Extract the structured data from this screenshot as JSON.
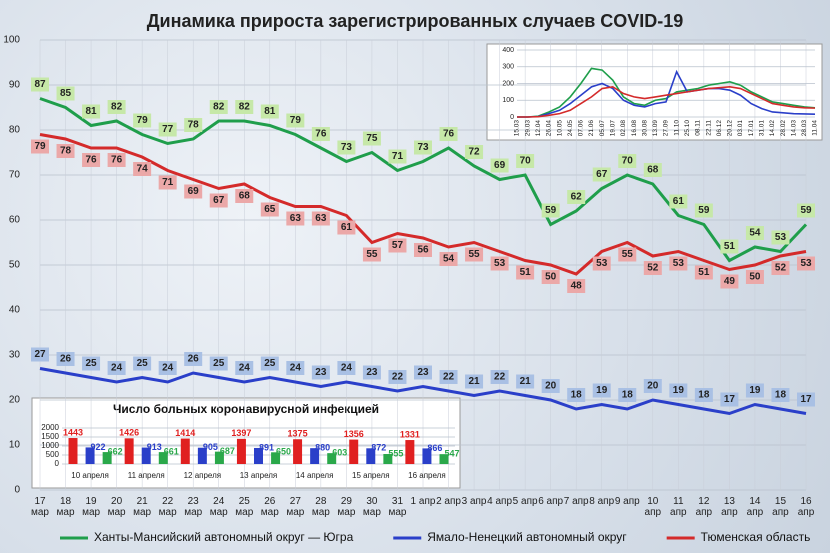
{
  "chart_data": [
    {
      "type": "line",
      "title": "Динамика прироста зарегистрированных случаев COVID-19",
      "categories": [
        "17 мар",
        "18 мар",
        "19 мар",
        "20 мар",
        "21 мар",
        "22 мар",
        "23 мар",
        "24 мар",
        "25 мар",
        "26 мар",
        "27 мар",
        "28 мар",
        "29 мар",
        "30 мар",
        "31 мар",
        "1 апр",
        "2 апр",
        "3 апр",
        "4 апр",
        "5 апр",
        "6 апр",
        "7 апр",
        "8 апр",
        "9 апр",
        "10 апр",
        "11 апр",
        "12 апр",
        "13 апр",
        "14 апр",
        "15 апр",
        "16 апр"
      ],
      "series": [
        {
          "name": "Ханты-Мансийский автономный округ — Югра",
          "color": "#1f9e4b",
          "label_bg": "#c6e8a8",
          "values": [
            87,
            85,
            81,
            82,
            79,
            77,
            78,
            82,
            82,
            81,
            79,
            76,
            73,
            75,
            71,
            73,
            76,
            72,
            69,
            70,
            59,
            62,
            67,
            70,
            68,
            61,
            59,
            51,
            54,
            53,
            59
          ]
        },
        {
          "name": "Ямало-Ненецкий автономный округ",
          "color": "#2a3fc9",
          "label_bg": "#a9c0e4",
          "values": [
            27,
            26,
            25,
            24,
            25,
            24,
            26,
            25,
            24,
            25,
            24,
            23,
            24,
            23,
            22,
            23,
            22,
            21,
            22,
            21,
            20,
            18,
            19,
            18,
            20,
            19,
            18,
            17,
            19,
            18,
            17
          ]
        },
        {
          "name": "Тюменская область",
          "color": "#d42a2a",
          "label_bg": "#eba8a8",
          "values": [
            79,
            78,
            76,
            76,
            74,
            71,
            69,
            67,
            68,
            65,
            63,
            63,
            61,
            55,
            57,
            56,
            54,
            55,
            53,
            51,
            50,
            48,
            53,
            55,
            52,
            53,
            51,
            49,
            50,
            52,
            53
          ]
        }
      ],
      "ylim": [
        0,
        100
      ],
      "yticks": [
        0,
        10,
        20,
        30,
        40,
        50,
        60,
        70,
        80,
        90,
        100
      ],
      "grid": true,
      "legend": "bottom",
      "data_labels": true
    },
    {
      "type": "line",
      "categories": [
        "15.03",
        "29.03",
        "12.04",
        "26.04",
        "10.05",
        "24.05",
        "07.06",
        "21.06",
        "05.07",
        "19.07",
        "02.08",
        "16.08",
        "30.08",
        "13.09",
        "27.09",
        "11.10",
        "25.10",
        "08.11",
        "22.11",
        "06.12",
        "20.12",
        "03.01",
        "17.01",
        "31.01",
        "14.02",
        "28.02",
        "14.03",
        "28.03",
        "11.04"
      ],
      "series": [
        {
          "color": "#1f9e4b",
          "values": [
            0,
            0,
            5,
            30,
            60,
            120,
            200,
            290,
            280,
            220,
            120,
            80,
            70,
            100,
            110,
            150,
            160,
            170,
            190,
            200,
            210,
            190,
            150,
            120,
            90,
            80,
            70,
            60,
            55
          ]
        },
        {
          "color": "#2a3fc9",
          "values": [
            0,
            0,
            3,
            20,
            40,
            80,
            130,
            180,
            200,
            170,
            100,
            70,
            60,
            80,
            90,
            270,
            150,
            160,
            170,
            170,
            160,
            130,
            80,
            50,
            30,
            25,
            20,
            18,
            17
          ]
        },
        {
          "color": "#d42a2a",
          "values": [
            0,
            0,
            2,
            10,
            20,
            40,
            80,
            120,
            170,
            180,
            140,
            120,
            110,
            120,
            130,
            140,
            150,
            160,
            170,
            175,
            180,
            170,
            140,
            110,
            80,
            70,
            60,
            55,
            53
          ]
        }
      ],
      "ylim": [
        0,
        400
      ],
      "yticks": [
        0,
        100,
        200,
        300,
        400
      ],
      "grid": true
    },
    {
      "type": "bar",
      "title": "Число больных коронавирусной инфекцией",
      "categories": [
        "10 апреля",
        "11 апреля",
        "12 апреля",
        "13 апреля",
        "14 апреля",
        "15 апреля",
        "16 апреля"
      ],
      "series": [
        {
          "color": "#e02020",
          "values": [
            1443,
            1426,
            1414,
            1397,
            1375,
            1356,
            1331
          ]
        },
        {
          "color": "#2a3fc9",
          "values": [
            922,
            913,
            905,
            891,
            880,
            872,
            866
          ]
        },
        {
          "color": "#2aa84a",
          "values": [
            662,
            661,
            687,
            650,
            603,
            555,
            547
          ]
        }
      ],
      "ylim": [
        0,
        2000
      ],
      "yticks": [
        0,
        500,
        1000,
        1500,
        2000
      ],
      "grid": true,
      "data_labels": true
    }
  ]
}
